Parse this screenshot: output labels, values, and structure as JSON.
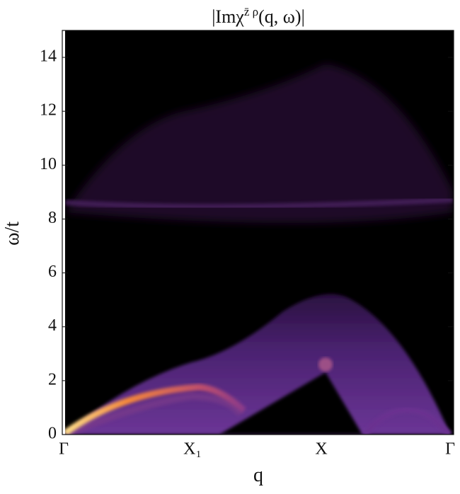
{
  "chart_data": {
    "type": "density",
    "title": {
      "main": "|Imχ",
      "sup": "z̄ ρ",
      "tail": "(q, ω)|"
    },
    "x_label": "q",
    "y_label": "ω/t",
    "categories": [
      "Γ",
      "X₁",
      "X",
      "Γ"
    ],
    "ylim": [
      0,
      15
    ],
    "yticks": [
      0,
      2,
      4,
      6,
      8,
      10,
      12,
      14
    ]
  }
}
